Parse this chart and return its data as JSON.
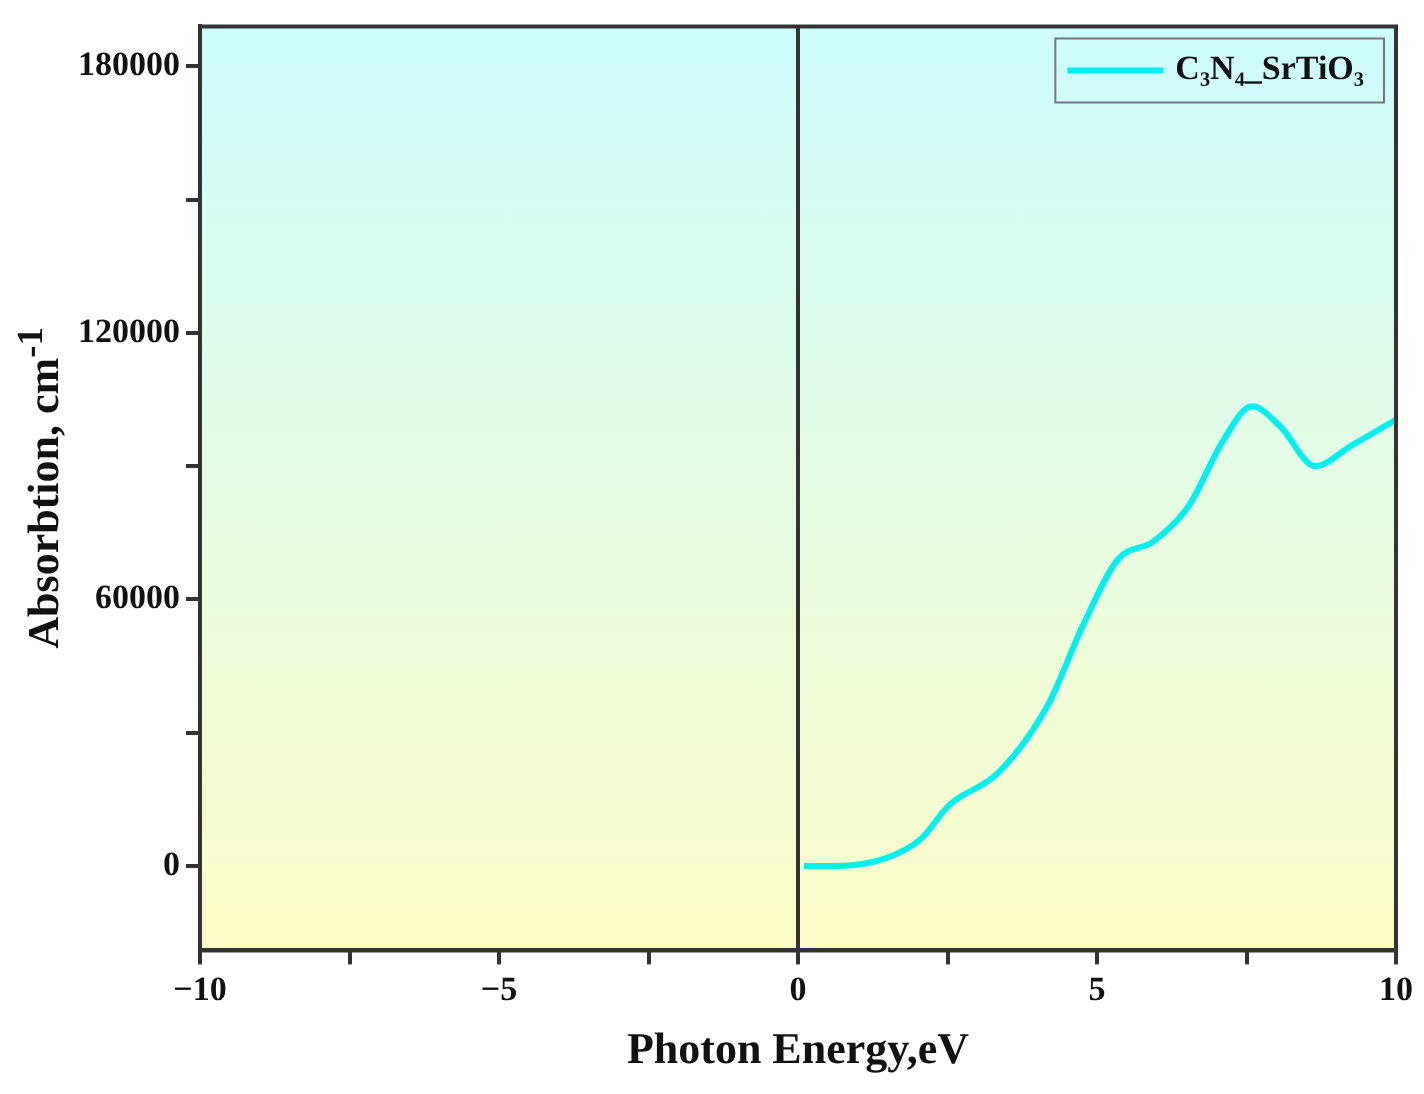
{
  "chart_data": {
    "type": "line",
    "xlabel": "Photon Energy,eV",
    "ylabel": "Absorbtion, cm$^{-1}$",
    "xlim": [
      -10,
      10
    ],
    "xticks": [
      -10,
      {
        "value": -7.5,
        "label": null
      },
      -5,
      {
        "value": -2.5,
        "label": null
      },
      0,
      {
        "value": 2.5,
        "label": null
      },
      5,
      {
        "value": 7.5,
        "label": null
      },
      10
    ],
    "ylim": [
      -19000,
      189000
    ],
    "yticks": [
      0,
      {
        "value": 30000,
        "label": null
      },
      60000,
      {
        "value": 90000,
        "label": null
      },
      120000,
      {
        "value": 150000,
        "label": null
      },
      180000
    ],
    "grid": false,
    "legend": "top right",
    "marker": "none",
    "line_style": "solid",
    "ref_lines": [
      {
        "axis": "x",
        "value": 0,
        "color": "#333333"
      }
    ],
    "series": [
      {
        "name": "C₃N₄_SrTiO₃",
        "color": "#00f0f0",
        "x": [
          0.1,
          0.62,
          1.46,
          2.05,
          2.52,
          3.35,
          4.17,
          4.76,
          5.35,
          5.94,
          6.53,
          7.12,
          7.59,
          8.06,
          8.65,
          9.24,
          10
        ],
        "values": [
          0,
          0,
          1700,
          6000,
          13600,
          21000,
          36000,
          54000,
          69000,
          73000,
          81000,
          96000,
          103500,
          99000,
          90000,
          94500,
          100500
        ]
      }
    ]
  }
}
